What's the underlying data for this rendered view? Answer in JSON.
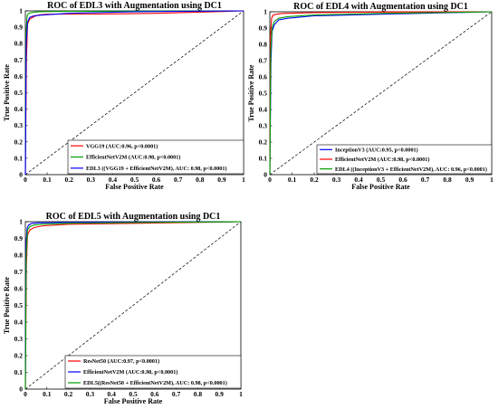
{
  "chart_data": [
    {
      "type": "line",
      "title": "ROC of EDL3 with Augmentation using DC1",
      "xlabel": "False Positive Rate",
      "ylabel": "True Positive Rate",
      "xlim": [
        0,
        1
      ],
      "ylim": [
        0,
        1
      ],
      "xticks": [
        "0",
        "0.1",
        "0.2",
        "0.3",
        "0.4",
        "0.5",
        "0.6",
        "0.7",
        "0.8",
        "0.9",
        "1"
      ],
      "yticks": [
        "0",
        "0.1",
        "0.2",
        "0.3",
        "0.4",
        "0.5",
        "0.6",
        "0.7",
        "0.8",
        "0.9",
        "1"
      ],
      "grid": false,
      "legend_position": "bottom-right",
      "diagonal": true,
      "series": [
        {
          "name": "VGG19 (AUC:0.96, p<0.0001)",
          "color": "#ff0000",
          "x": [
            0,
            0.005,
            0.01,
            0.02,
            0.04,
            0.06,
            0.1,
            0.3,
            0.6,
            1
          ],
          "y": [
            0,
            0.7,
            0.92,
            0.95,
            0.965,
            0.975,
            0.98,
            0.98,
            0.985,
            1
          ]
        },
        {
          "name": "EfficientNetV2M (AUC:0.98, p<0.0001)",
          "color": "#00a000",
          "x": [
            0,
            0.003,
            0.008,
            0.015,
            0.03,
            0.06,
            0.2,
            0.5,
            1
          ],
          "y": [
            0,
            0.85,
            0.97,
            0.985,
            0.99,
            0.995,
            0.997,
            0.998,
            1
          ]
        },
        {
          "name": "EDL3 ((VGG19 + EfficientNetV2M), AUC: 0.98, p<0.0001)",
          "color": "#0000ff",
          "x": [
            0,
            0.004,
            0.01,
            0.02,
            0.04,
            0.08,
            0.2,
            0.5,
            1
          ],
          "y": [
            0,
            0.8,
            0.93,
            0.96,
            0.97,
            0.975,
            0.985,
            0.995,
            1
          ]
        }
      ]
    },
    {
      "type": "line",
      "title": "ROC of EDL4 with Augmentation using DC1",
      "xlabel": "False Positive Rate",
      "ylabel": "True Positive Rate",
      "xlim": [
        0,
        1
      ],
      "ylim": [
        0,
        1
      ],
      "xticks": [
        "0",
        "0.1",
        "0.2",
        "0.3",
        "0.4",
        "0.5",
        "0.6",
        "0.7",
        "0.8",
        "0.9",
        "1"
      ],
      "yticks": [
        "0",
        "0.1",
        "0.2",
        "0.3",
        "0.4",
        "0.5",
        "0.6",
        "0.7",
        "0.8",
        "0.9",
        "1"
      ],
      "grid": false,
      "legend_position": "bottom-right",
      "diagonal": true,
      "series": [
        {
          "name": "InceptionV3 (AUC:0.95, p<0.0001)",
          "color": "#0000ff",
          "x": [
            0,
            0.005,
            0.01,
            0.02,
            0.04,
            0.08,
            0.2,
            0.5,
            1
          ],
          "y": [
            0,
            0.7,
            0.88,
            0.92,
            0.95,
            0.96,
            0.975,
            0.985,
            1
          ]
        },
        {
          "name": "EfficientNetV2M (AUC:0.98, p<0.0001)",
          "color": "#ff0000",
          "x": [
            0,
            0.003,
            0.008,
            0.015,
            0.03,
            0.06,
            0.2,
            0.5,
            1
          ],
          "y": [
            0,
            0.85,
            0.96,
            0.98,
            0.985,
            0.99,
            0.995,
            0.998,
            1
          ]
        },
        {
          "name": "EDL4 ((InceptionV3 + EfficientNetV2M), AUC: 0.96, p<0.0001)",
          "color": "#00a000",
          "x": [
            0,
            0.004,
            0.01,
            0.02,
            0.04,
            0.08,
            0.2,
            0.5,
            1
          ],
          "y": [
            0,
            0.75,
            0.9,
            0.94,
            0.96,
            0.97,
            0.98,
            0.99,
            1
          ]
        }
      ]
    },
    {
      "type": "line",
      "title": "ROC of EDL5 with Augmentation using DC1",
      "xlabel": "False Positive Rate",
      "ylabel": "True Positive Rate",
      "xlim": [
        0,
        1
      ],
      "ylim": [
        0,
        1
      ],
      "xticks": [
        "0",
        "0.1",
        "0.2",
        "0.3",
        "0.4",
        "0.5",
        "0.6",
        "0.7",
        "0.8",
        "0.9",
        "1"
      ],
      "yticks": [
        "0",
        "0.1",
        "0.2",
        "0.3",
        "0.4",
        "0.5",
        "0.6",
        "0.7",
        "0.8",
        "0.9",
        "1"
      ],
      "grid": false,
      "legend_position": "bottom-right",
      "diagonal": true,
      "series": [
        {
          "name": "ResNet50 (AUC:0.97, p<0.0001)",
          "color": "#ff0000",
          "x": [
            0,
            0.005,
            0.01,
            0.02,
            0.04,
            0.08,
            0.2,
            0.5,
            1
          ],
          "y": [
            0,
            0.75,
            0.92,
            0.95,
            0.965,
            0.975,
            0.985,
            0.99,
            1
          ]
        },
        {
          "name": "EfficientNetV2M (AUC:0.98, p<0.0001)",
          "color": "#0000ff",
          "x": [
            0,
            0.003,
            0.008,
            0.015,
            0.03,
            0.06,
            0.2,
            0.5,
            1
          ],
          "y": [
            0,
            0.85,
            0.96,
            0.98,
            0.99,
            0.993,
            0.996,
            0.998,
            1
          ]
        },
        {
          "name": "EDL5((ResNet50 + EfficientNetV2M), AUC: 0.98, p<0.0001)",
          "color": "#00a000",
          "x": [
            0,
            0.004,
            0.01,
            0.02,
            0.04,
            0.08,
            0.2,
            0.5,
            1
          ],
          "y": [
            0,
            0.8,
            0.95,
            0.97,
            0.98,
            0.985,
            0.99,
            0.995,
            1
          ]
        }
      ]
    }
  ]
}
